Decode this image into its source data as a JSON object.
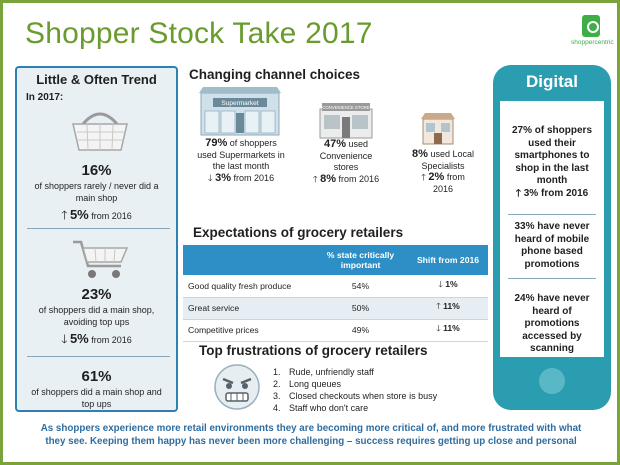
{
  "header": {
    "title": "Shopper Stock Take 2017",
    "logo_text": "shoppercentric"
  },
  "left": {
    "title": "Little & Often Trend",
    "subtitle": "In 2017:",
    "stats": [
      {
        "pct": "16%",
        "desc1": "of shoppers rarely / never did a",
        "desc2": "main shop",
        "change": "5%",
        "change_suffix": "from 2016",
        "dir": "up"
      },
      {
        "pct": "23%",
        "desc1": "of shoppers did a main shop,",
        "desc2": "avoiding top ups",
        "change": "5%",
        "change_suffix": "from 2016",
        "dir": "down"
      },
      {
        "pct": "61%",
        "desc1": "of shoppers did a main shop and",
        "desc2": "top ups"
      }
    ]
  },
  "channels": {
    "title": "Changing channel choices",
    "supermarket_sign": "Supermarket",
    "convenience_sign": "CONVENIENCE STORE",
    "items": [
      {
        "pct": "79%",
        "line1": "of shoppers",
        "line2": "used Supermarkets in",
        "line3": "the last month",
        "change": "3%",
        "change_suffix": "from 2016",
        "dir": "down"
      },
      {
        "pct": "47%",
        "line1": "used",
        "line2": "Convenience",
        "line3": "stores",
        "change": "8%",
        "change_suffix": "from 2016",
        "dir": "up"
      },
      {
        "pct": "8%",
        "line1": "used Local",
        "line2": "Specialists",
        "change": "2%",
        "change_suffix": "from",
        "line4": "2016",
        "dir": "up"
      }
    ]
  },
  "expectations": {
    "title": "Expectations of grocery retailers",
    "headers": [
      "",
      "% state critically important",
      "Shift from 2016"
    ],
    "rows": [
      {
        "label": "Good quality fresh produce",
        "pct": "54%",
        "shift": "1%",
        "dir": "down"
      },
      {
        "label": "Great service",
        "pct": "50%",
        "shift": "11%",
        "dir": "up"
      },
      {
        "label": "Competitive prices",
        "pct": "49%",
        "shift": "11%",
        "dir": "down"
      }
    ]
  },
  "frustrations": {
    "title": "Top frustrations of grocery retailers",
    "items": [
      {
        "n": "1.",
        "text": "Rude, unfriendly staff"
      },
      {
        "n": "2.",
        "text": "Long queues"
      },
      {
        "n": "3.",
        "text": "Closed checkouts when store is busy"
      },
      {
        "n": "4.",
        "text": "Staff who don't care"
      }
    ]
  },
  "digital": {
    "title": "Digital",
    "s1": {
      "pct": "27%",
      "l1": "of shoppers",
      "l2": "used their",
      "l3": "smartphones to",
      "l4": "shop in the last",
      "l5": "month",
      "change": "3%",
      "change_suffix": "from 2016"
    },
    "s2": {
      "pct": "33%",
      "l1": "have never",
      "l2": "heard of mobile",
      "l3": "phone based",
      "l4": "promotions"
    },
    "s3": {
      "pct": "24%",
      "l1": "have never",
      "l2": "heard of",
      "l3": "promotions",
      "l4": "accessed by",
      "l5": "scanning"
    }
  },
  "footer": {
    "line1": "As shoppers experience more retail environments they are becoming more critical of, and more frustrated with what",
    "line2": "they see. Keeping them happy has never been more challenging – success requires getting up close and personal"
  },
  "colors": {
    "green": "#6a9b2e",
    "blue": "#2e8ec6",
    "teal": "#2b9db0",
    "arrow": "#1f1f1f"
  }
}
